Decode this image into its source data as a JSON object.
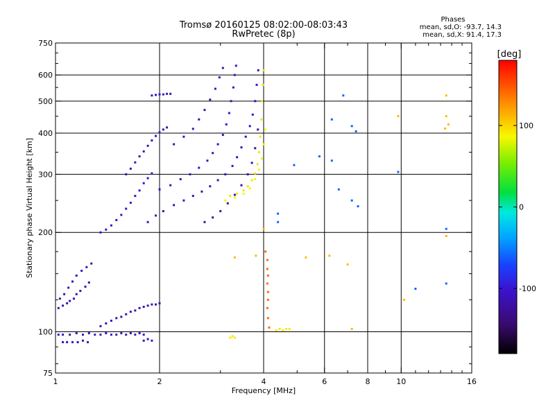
{
  "chart_data": {
    "type": "scatter",
    "title": "Tromsø 20160125 08:02:00-08:03:43",
    "subtitle": "RwPretec (8p)",
    "xlabel": "Frequency [MHz]",
    "ylabel": "Stationary phase Virtual Height [km]",
    "x_scale": "log",
    "y_scale": "log",
    "xlim": [
      1,
      16
    ],
    "ylim": [
      75,
      750
    ],
    "grid": true,
    "x_ticks": [
      1,
      2,
      4,
      6,
      8,
      10,
      16
    ],
    "x_tick_labels": [
      "1",
      "2",
      "4",
      "6",
      "8",
      "10",
      "16"
    ],
    "x_minor_ticks": [
      3,
      5,
      7,
      9,
      11,
      12,
      13,
      14,
      15
    ],
    "y_ticks": [
      75,
      100,
      200,
      300,
      400,
      500,
      600,
      750
    ],
    "y_tick_labels": [
      "75",
      "100",
      "200",
      "300",
      "400",
      "500",
      "600",
      "750"
    ],
    "y_grid_values": [
      100,
      200,
      300,
      400,
      500,
      600
    ],
    "y_minor_ticks": [
      80,
      90,
      125,
      150,
      175,
      250,
      350,
      450,
      550,
      650,
      700
    ],
    "x_grid_values": [
      2,
      4,
      6,
      8,
      10
    ],
    "phase_info": {
      "heading": "Phases",
      "line_o": "mean, sd,O: -93.7, 14.3",
      "line_x": "mean, sd,X:  91.4, 17.3"
    },
    "colorbar": {
      "label": "[deg]",
      "range": [
        -180,
        180
      ],
      "ticks": [
        100,
        0,
        -100
      ],
      "tick_labels": [
        "100",
        "0",
        "-100"
      ],
      "colormap": "rainbow (black-purple-blue-cyan-green-yellow-red)"
    },
    "traces": [
      {
        "phase": -110,
        "points": [
          [
            1.02,
            98
          ],
          [
            1.05,
            98
          ],
          [
            1.1,
            98
          ],
          [
            1.15,
            99
          ],
          [
            1.2,
            98
          ],
          [
            1.25,
            99
          ],
          [
            1.3,
            98
          ],
          [
            1.35,
            98
          ],
          [
            1.4,
            99
          ],
          [
            1.45,
            98
          ],
          [
            1.5,
            98
          ],
          [
            1.55,
            99
          ],
          [
            1.6,
            98
          ],
          [
            1.65,
            99
          ],
          [
            1.7,
            98
          ],
          [
            1.75,
            99
          ],
          [
            1.8,
            98
          ]
        ]
      },
      {
        "phase": -110,
        "points": [
          [
            1.05,
            93
          ],
          [
            1.08,
            93
          ],
          [
            1.12,
            93
          ],
          [
            1.16,
            93
          ],
          [
            1.2,
            94
          ],
          [
            1.24,
            93
          ],
          [
            1.8,
            94
          ],
          [
            1.85,
            95
          ],
          [
            1.9,
            94
          ]
        ]
      },
      {
        "phase": -115,
        "points": [
          [
            1.02,
            118
          ],
          [
            1.05,
            120
          ],
          [
            1.08,
            122
          ],
          [
            1.1,
            124
          ],
          [
            1.13,
            126
          ],
          [
            1.15,
            130
          ],
          [
            1.18,
            133
          ],
          [
            1.22,
            137
          ],
          [
            1.25,
            141
          ]
        ]
      },
      {
        "phase": -115,
        "points": [
          [
            1.03,
            126
          ],
          [
            1.06,
            130
          ],
          [
            1.09,
            136
          ],
          [
            1.12,
            142
          ],
          [
            1.15,
            148
          ],
          [
            1.19,
            153
          ],
          [
            1.23,
            157
          ],
          [
            1.27,
            161
          ]
        ]
      },
      {
        "phase": -115,
        "points": [
          [
            1.35,
            104
          ],
          [
            1.4,
            106
          ],
          [
            1.45,
            108
          ],
          [
            1.5,
            110
          ],
          [
            1.55,
            111
          ],
          [
            1.6,
            113
          ],
          [
            1.65,
            115
          ],
          [
            1.7,
            116
          ],
          [
            1.75,
            118
          ],
          [
            1.8,
            119
          ],
          [
            1.85,
            120
          ],
          [
            1.9,
            121
          ],
          [
            1.95,
            121
          ],
          [
            2.0,
            122
          ]
        ]
      },
      {
        "phase": -105,
        "points": [
          [
            1.35,
            200
          ],
          [
            1.4,
            204
          ],
          [
            1.45,
            210
          ],
          [
            1.5,
            218
          ],
          [
            1.55,
            226
          ],
          [
            1.6,
            236
          ],
          [
            1.65,
            246
          ],
          [
            1.7,
            258
          ],
          [
            1.75,
            268
          ],
          [
            1.8,
            282
          ],
          [
            1.85,
            292
          ],
          [
            1.9,
            302
          ]
        ]
      },
      {
        "phase": -110,
        "points": [
          [
            1.6,
            300
          ],
          [
            1.65,
            312
          ],
          [
            1.7,
            326
          ],
          [
            1.75,
            340
          ],
          [
            1.8,
            352
          ],
          [
            1.85,
            366
          ],
          [
            1.9,
            380
          ],
          [
            1.95,
            392
          ],
          [
            2.0,
            402
          ],
          [
            2.05,
            410
          ],
          [
            2.1,
            416
          ]
        ]
      },
      {
        "phase": -110,
        "points": [
          [
            1.9,
            520
          ],
          [
            1.95,
            522
          ],
          [
            2.0,
            524
          ],
          [
            2.05,
            524
          ],
          [
            2.1,
            526
          ],
          [
            2.15,
            526
          ]
        ]
      },
      {
        "phase": -112,
        "points": [
          [
            1.85,
            215
          ],
          [
            1.95,
            225
          ],
          [
            2.05,
            232
          ],
          [
            2.2,
            242
          ],
          [
            2.35,
            250
          ],
          [
            2.5,
            258
          ],
          [
            2.65,
            266
          ],
          [
            2.8,
            276
          ],
          [
            2.95,
            288
          ],
          [
            3.1,
            300
          ],
          [
            3.25,
            318
          ],
          [
            3.35,
            338
          ],
          [
            3.45,
            362
          ],
          [
            3.55,
            390
          ],
          [
            3.65,
            420
          ],
          [
            3.72,
            455
          ],
          [
            3.78,
            500
          ],
          [
            3.82,
            560
          ],
          [
            3.86,
            620
          ]
        ]
      },
      {
        "phase": -108,
        "points": [
          [
            2.0,
            270
          ],
          [
            2.15,
            278
          ],
          [
            2.3,
            290
          ],
          [
            2.45,
            300
          ],
          [
            2.6,
            314
          ],
          [
            2.75,
            330
          ],
          [
            2.85,
            348
          ],
          [
            2.95,
            370
          ],
          [
            3.05,
            395
          ],
          [
            3.12,
            425
          ],
          [
            3.18,
            460
          ],
          [
            3.22,
            500
          ],
          [
            3.27,
            550
          ],
          [
            3.3,
            600
          ],
          [
            3.33,
            640
          ]
        ]
      },
      {
        "phase": -112,
        "points": [
          [
            2.2,
            370
          ],
          [
            2.35,
            390
          ],
          [
            2.5,
            412
          ],
          [
            2.6,
            440
          ],
          [
            2.7,
            470
          ],
          [
            2.8,
            505
          ],
          [
            2.9,
            545
          ],
          [
            2.98,
            590
          ],
          [
            3.05,
            630
          ]
        ]
      },
      {
        "phase": -120,
        "points": [
          [
            2.7,
            215
          ],
          [
            2.85,
            222
          ],
          [
            3.0,
            232
          ],
          [
            3.15,
            245
          ],
          [
            3.3,
            260
          ],
          [
            3.45,
            278
          ],
          [
            3.6,
            300
          ],
          [
            3.7,
            325
          ],
          [
            3.78,
            360
          ],
          [
            3.85,
            410
          ]
        ]
      },
      {
        "phase": 95,
        "points": [
          [
            3.2,
            258
          ],
          [
            3.35,
            262
          ],
          [
            3.5,
            268
          ],
          [
            3.6,
            276
          ],
          [
            3.7,
            288
          ],
          [
            3.78,
            302
          ],
          [
            3.84,
            322
          ],
          [
            3.88,
            350
          ],
          [
            3.91,
            390
          ],
          [
            3.94,
            440
          ],
          [
            3.96,
            500
          ],
          [
            3.98,
            560
          ],
          [
            4.0,
            620
          ]
        ]
      },
      {
        "phase": 88,
        "points": [
          [
            3.1,
            250
          ],
          [
            3.3,
            255
          ],
          [
            3.5,
            262
          ],
          [
            3.65,
            272
          ],
          [
            3.78,
            290
          ],
          [
            3.88,
            310
          ],
          [
            3.95,
            335
          ],
          [
            4.0,
            370
          ],
          [
            4.05,
            410
          ]
        ]
      },
      {
        "phase": 92,
        "points": [
          [
            3.2,
            96
          ],
          [
            3.25,
            97
          ],
          [
            3.3,
            96
          ],
          [
            4.35,
            101
          ],
          [
            4.45,
            102
          ],
          [
            4.55,
            101
          ],
          [
            4.65,
            102
          ],
          [
            4.75,
            102
          ]
        ]
      },
      {
        "phase": 140,
        "points": [
          [
            4.05,
            175
          ],
          [
            4.1,
            165
          ],
          [
            4.1,
            155
          ],
          [
            4.12,
            148
          ],
          [
            4.1,
            140
          ],
          [
            4.12,
            132
          ],
          [
            4.12,
            125
          ],
          [
            4.1,
            118
          ],
          [
            4.12,
            110
          ],
          [
            4.15,
            103
          ]
        ]
      },
      {
        "phase": -60,
        "points": [
          [
            4.9,
            320
          ],
          [
            5.8,
            340
          ],
          [
            6.3,
            330
          ],
          [
            6.6,
            270
          ],
          [
            7.2,
            250
          ],
          [
            7.5,
            240
          ],
          [
            9.8,
            305
          ],
          [
            13.5,
            205
          ],
          [
            13.5,
            140
          ],
          [
            11,
            135
          ],
          [
            6.8,
            520
          ],
          [
            6.3,
            440
          ],
          [
            7.2,
            420
          ],
          [
            7.4,
            405
          ],
          [
            4.4,
            228
          ],
          [
            4.4,
            215
          ]
        ]
      },
      {
        "phase": 110,
        "points": [
          [
            9.8,
            450
          ],
          [
            13.5,
            450
          ],
          [
            13.5,
            520
          ],
          [
            10.2,
            125
          ],
          [
            13.5,
            195
          ],
          [
            7.2,
            102
          ],
          [
            6.2,
            170
          ],
          [
            5.3,
            168
          ],
          [
            7.0,
            160
          ],
          [
            3.8,
            170
          ],
          [
            3.3,
            168
          ],
          [
            4.0,
            205
          ],
          [
            13.7,
            425
          ],
          [
            13.4,
            413
          ]
        ]
      }
    ]
  }
}
